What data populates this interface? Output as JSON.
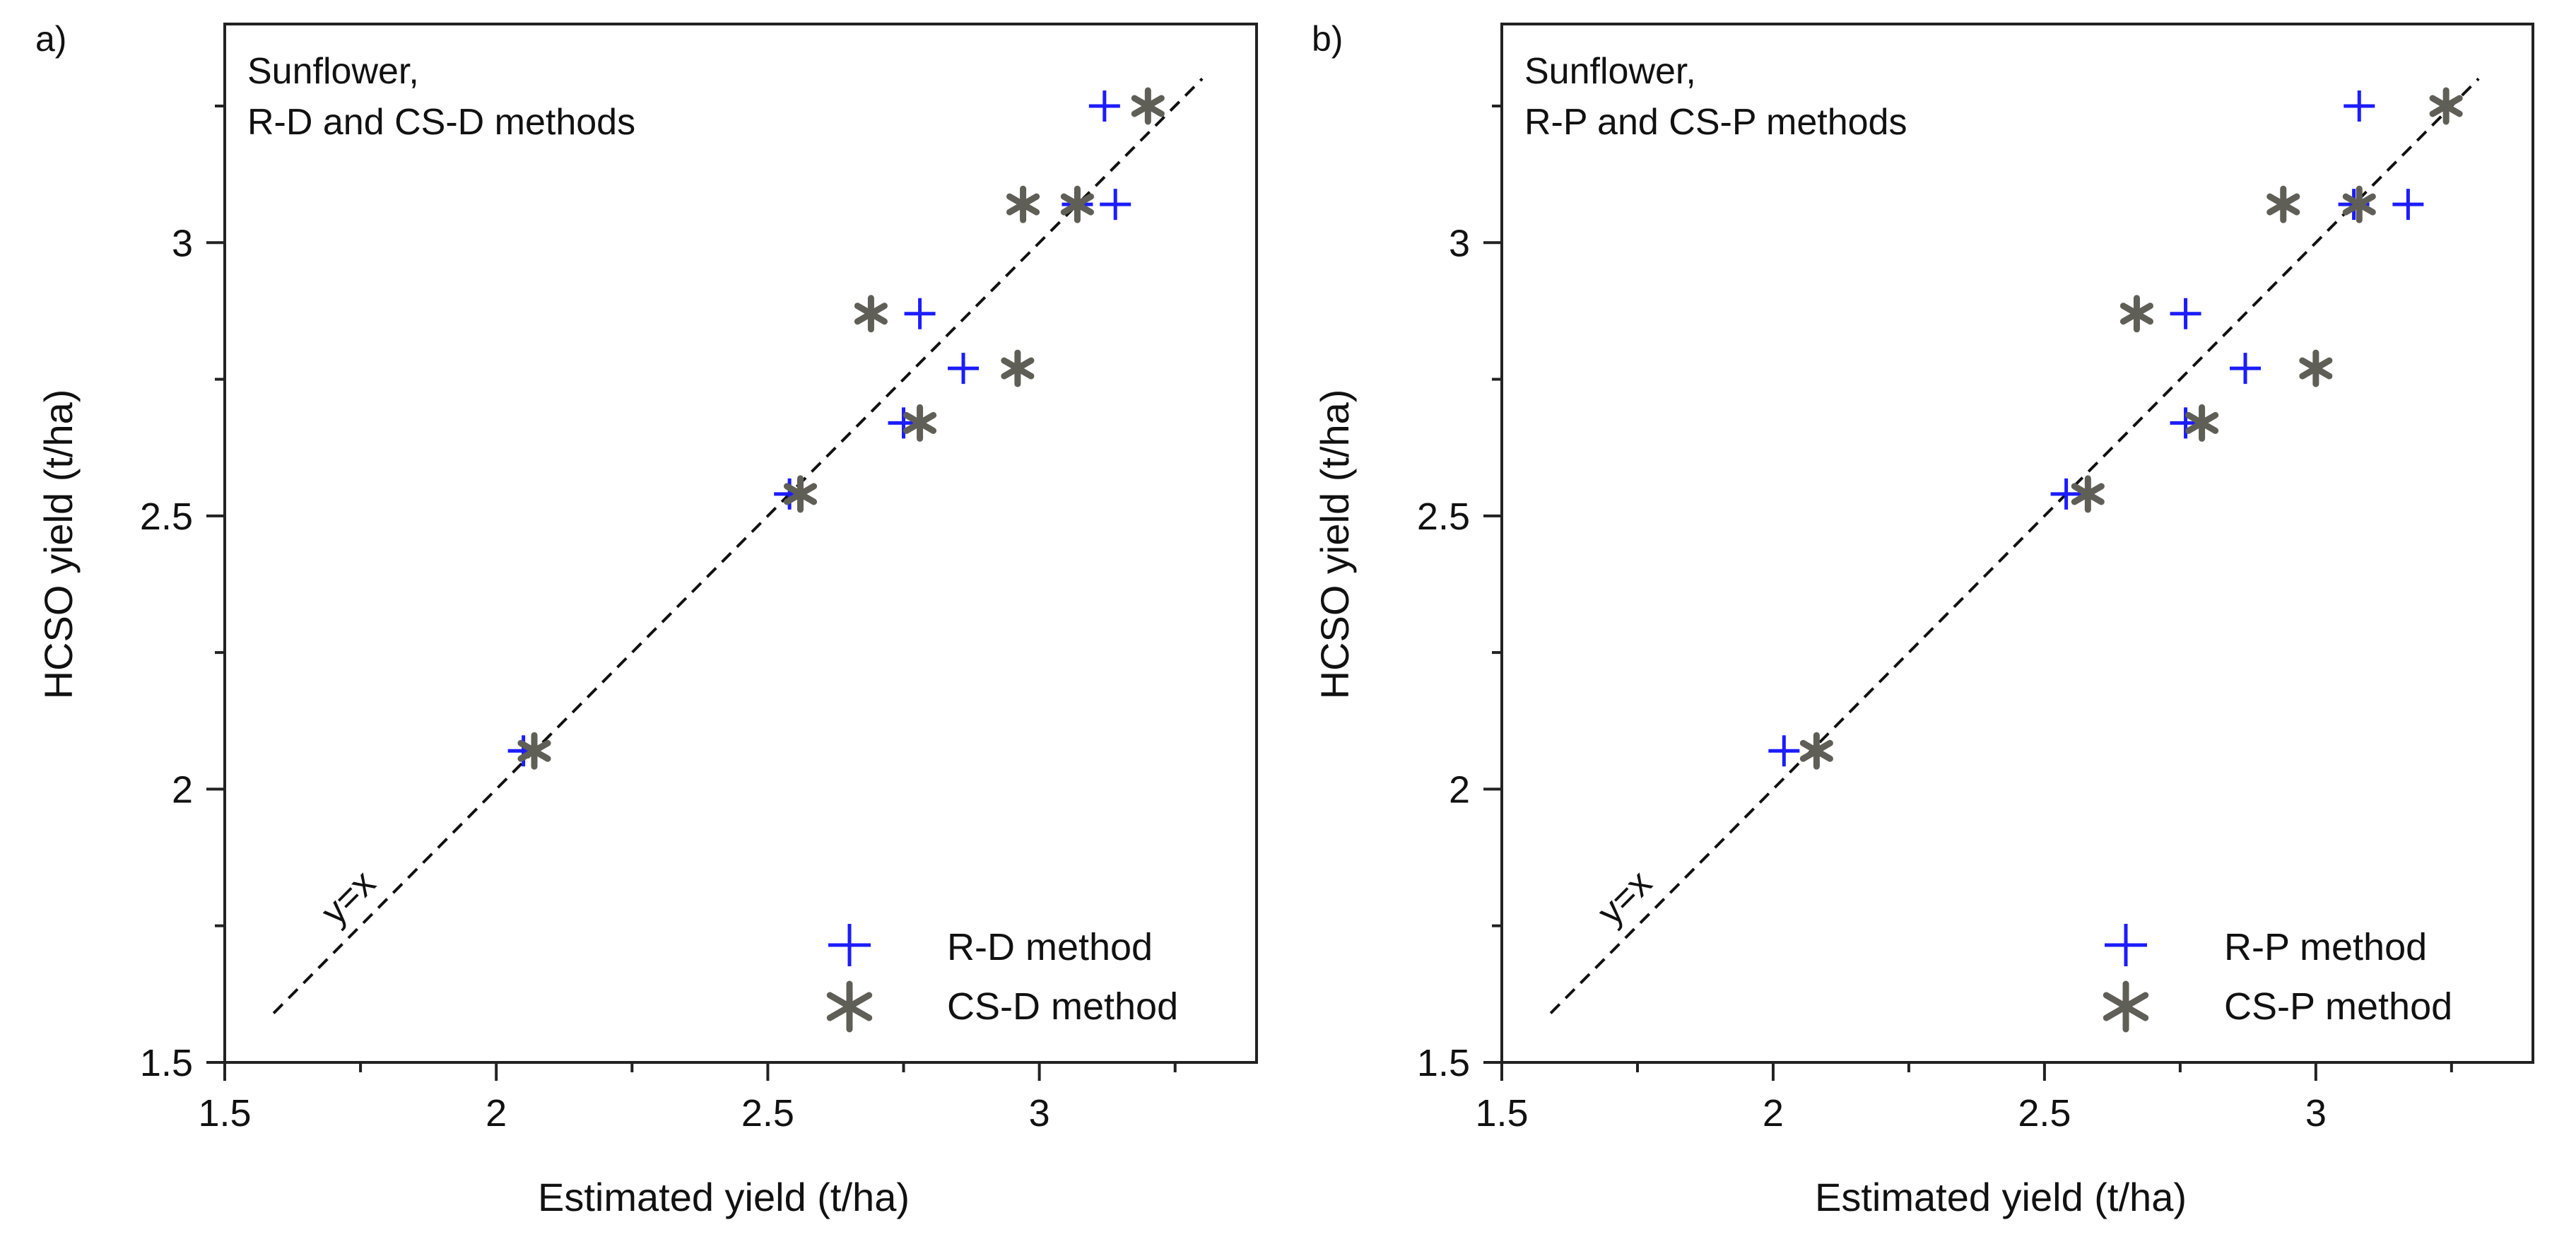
{
  "chart_data": [
    {
      "type": "scatter",
      "panel_label": "a)",
      "annotation_lines": [
        "Sunflower,",
        "R-D and CS-D methods"
      ],
      "xlabel": "Estimated yield (t/ha)",
      "ylabel": "HCSO yield (t/ha)",
      "xlim": [
        1.5,
        3.4
      ],
      "ylim": [
        1.5,
        3.4
      ],
      "xticks": [
        1.5,
        2,
        2.5,
        3
      ],
      "yticks": [
        1.5,
        2,
        2.5,
        3
      ],
      "xtick_labels": [
        "1.5",
        "2",
        "2.5",
        "3"
      ],
      "ytick_labels": [
        "1.5",
        "2",
        "2.5",
        "3"
      ],
      "grid": false,
      "legend_position": "bottom-right",
      "reference_line": {
        "label": "y=x",
        "from": [
          1.59,
          1.59
        ],
        "to": [
          3.3,
          3.3
        ],
        "style": "dashed"
      },
      "series": [
        {
          "name": "R-D method",
          "marker": "plus",
          "color": "#1c1cff",
          "points": [
            {
              "x": 2.05,
              "y": 2.07
            },
            {
              "x": 2.54,
              "y": 2.54
            },
            {
              "x": 2.75,
              "y": 2.67
            },
            {
              "x": 2.78,
              "y": 2.87
            },
            {
              "x": 2.86,
              "y": 2.77
            },
            {
              "x": 3.07,
              "y": 3.07
            },
            {
              "x": 3.14,
              "y": 3.07
            },
            {
              "x": 3.12,
              "y": 3.25
            }
          ]
        },
        {
          "name": "CS-D method",
          "marker": "asterisk",
          "color": "#5f5f57",
          "points": [
            {
              "x": 2.07,
              "y": 2.07
            },
            {
              "x": 2.56,
              "y": 2.54
            },
            {
              "x": 2.78,
              "y": 2.67
            },
            {
              "x": 2.69,
              "y": 2.87
            },
            {
              "x": 2.96,
              "y": 2.77
            },
            {
              "x": 2.97,
              "y": 3.07
            },
            {
              "x": 3.07,
              "y": 3.07
            },
            {
              "x": 3.2,
              "y": 3.25
            }
          ]
        }
      ]
    },
    {
      "type": "scatter",
      "panel_label": "b)",
      "annotation_lines": [
        "Sunflower,",
        "R-P and CS-P methods"
      ],
      "xlabel": "Estimated yield (t/ha)",
      "ylabel": "HCSO yield (t/ha)",
      "xlim": [
        1.5,
        3.4
      ],
      "ylim": [
        1.5,
        3.4
      ],
      "xticks": [
        1.5,
        2,
        2.5,
        3
      ],
      "yticks": [
        1.5,
        2,
        2.5,
        3
      ],
      "xtick_labels": [
        "1.5",
        "2",
        "2.5",
        "3"
      ],
      "ytick_labels": [
        "1.5",
        "2",
        "2.5",
        "3"
      ],
      "grid": false,
      "legend_position": "bottom-right",
      "reference_line": {
        "label": "y=x",
        "from": [
          1.59,
          1.59
        ],
        "to": [
          3.3,
          3.3
        ],
        "style": "dashed"
      },
      "series": [
        {
          "name": "R-P method",
          "marker": "plus",
          "color": "#1c1cff",
          "points": [
            {
              "x": 2.02,
              "y": 2.07
            },
            {
              "x": 2.54,
              "y": 2.54
            },
            {
              "x": 2.76,
              "y": 2.67
            },
            {
              "x": 2.76,
              "y": 2.87
            },
            {
              "x": 2.87,
              "y": 2.77
            },
            {
              "x": 3.07,
              "y": 3.07
            },
            {
              "x": 3.17,
              "y": 3.07
            },
            {
              "x": 3.08,
              "y": 3.25
            }
          ]
        },
        {
          "name": "CS-P method",
          "marker": "asterisk",
          "color": "#5f5f57",
          "points": [
            {
              "x": 2.08,
              "y": 2.07
            },
            {
              "x": 2.58,
              "y": 2.54
            },
            {
              "x": 2.79,
              "y": 2.67
            },
            {
              "x": 2.67,
              "y": 2.87
            },
            {
              "x": 3.0,
              "y": 2.77
            },
            {
              "x": 2.94,
              "y": 3.07
            },
            {
              "x": 3.08,
              "y": 3.07
            },
            {
              "x": 3.24,
              "y": 3.25
            }
          ]
        }
      ]
    }
  ]
}
